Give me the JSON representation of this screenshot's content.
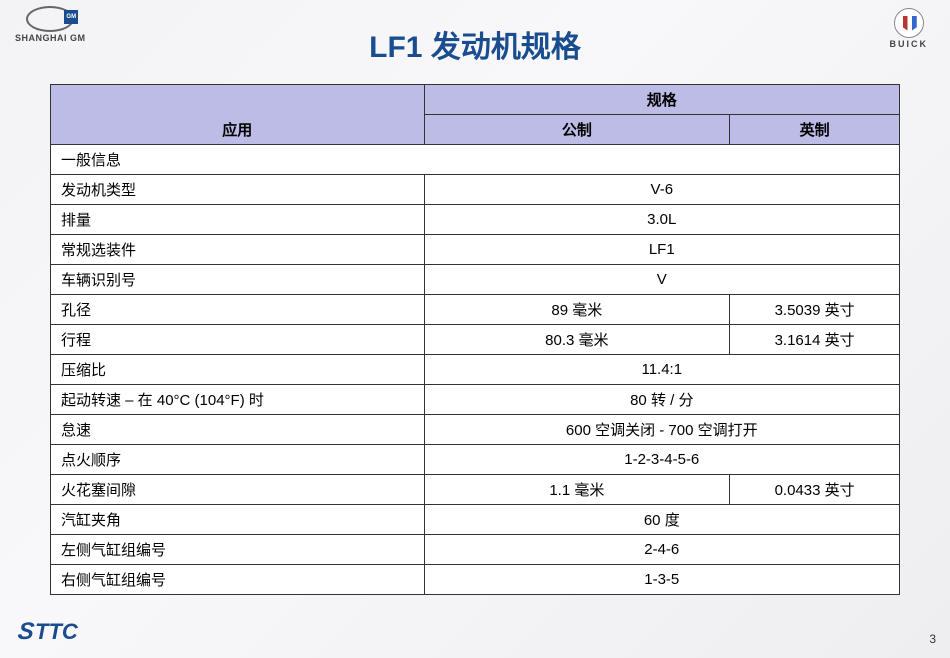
{
  "logos": {
    "left_sub": "SHANGHAI GM",
    "left_gm": "GM",
    "right_sub": "BUICK"
  },
  "title": "LF1 发动机规格",
  "headers": {
    "spec": "规格",
    "application": "应用",
    "metric": "公制",
    "imperial": "英制"
  },
  "rows": [
    {
      "type": "section",
      "label": "一般信息"
    },
    {
      "type": "merged",
      "label": "发动机类型",
      "value": "V-6"
    },
    {
      "type": "merged",
      "label": "排量",
      "value": "3.0L"
    },
    {
      "type": "merged",
      "label": "常规选装件",
      "value": "LF1"
    },
    {
      "type": "merged",
      "label": "车辆识别号",
      "value": "V"
    },
    {
      "type": "split",
      "label": "孔径",
      "metric": "89 毫米",
      "imperial": "3.5039 英寸"
    },
    {
      "type": "split",
      "label": "行程",
      "metric": "80.3 毫米",
      "imperial": "3.1614 英寸"
    },
    {
      "type": "merged",
      "label": "压缩比",
      "value": "11.4:1"
    },
    {
      "type": "merged",
      "label": "起动转速 –  在 40°C (104°F)  时",
      "value": "80 转 / 分"
    },
    {
      "type": "merged",
      "label": "怠速",
      "value": "600  空调关闭 - 700  空调打开"
    },
    {
      "type": "merged",
      "label": "点火顺序",
      "value": "1-2-3-4-5-6"
    },
    {
      "type": "split",
      "label": "火花塞间隙",
      "metric": "1.1 毫米",
      "imperial": "0.0433  英寸"
    },
    {
      "type": "merged",
      "label": "汽缸夹角",
      "value": "60 度"
    },
    {
      "type": "merged",
      "label": "左侧气缸组编号",
      "value": "2-4-6"
    },
    {
      "type": "merged",
      "label": "右侧气缸组编号",
      "value": "1-3-5"
    }
  ],
  "footer": {
    "left": "STTC",
    "page": "3"
  },
  "style": {
    "title_color": "#1a4d8f",
    "header_bg": "#bcbce6",
    "border_color": "#333333",
    "cell_bg": "#ffffff"
  }
}
